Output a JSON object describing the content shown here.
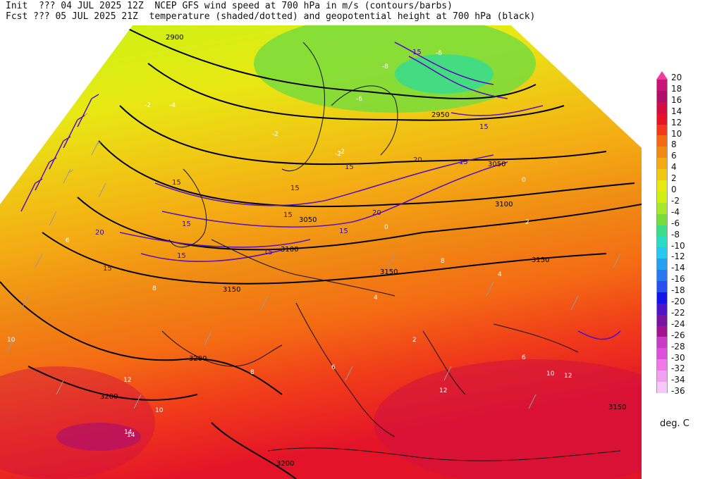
{
  "header": {
    "line1": "Init  ??? 04 JUL 2025 12Z  NCEP GFS wind speed at 700 hPa in m/s (contours/barbs)",
    "line2": "Fcst ??? 05 JUL 2025 21Z  temperature (shaded/dotted) and geopotential height at 700 hPa (black)"
  },
  "legend": {
    "unit": "deg. C",
    "ticks": [
      "20",
      "18",
      "16",
      "14",
      "12",
      "10",
      "8",
      "6",
      "4",
      "2",
      "0",
      "-2",
      "-4",
      "-6",
      "-8",
      "-10",
      "-12",
      "-14",
      "-16",
      "-18",
      "-20",
      "-22",
      "-24",
      "-26",
      "-28",
      "-30",
      "-32",
      "-34",
      "-36"
    ],
    "colors": [
      "#f03ca0",
      "#c81478",
      "#b0106a",
      "#d01040",
      "#e41428",
      "#f03a1a",
      "#f46a14",
      "#f08a14",
      "#f4aa14",
      "#f0c814",
      "#e8e814",
      "#d0f014",
      "#a8e82c",
      "#78dc3c",
      "#3cdc8a",
      "#28dcc8",
      "#28c8f0",
      "#28a0f0",
      "#2878f0",
      "#2850f0",
      "#1414e8",
      "#5014c8",
      "#7814a0",
      "#a01490",
      "#c83cc8",
      "#dc50dc",
      "#f078e8",
      "#f4a0f0",
      "#f8c8f8"
    ]
  },
  "map_labels": {
    "heights": [
      "2900",
      "2950",
      "3050",
      "3100",
      "3150",
      "3200",
      "3050",
      "3100",
      "3150",
      "3200",
      "3150",
      "3200",
      "3150"
    ],
    "winds": [
      "15",
      "15",
      "15",
      "15",
      "15",
      "15",
      "20",
      "20",
      "15",
      "15",
      "15",
      "15",
      "15",
      "20",
      "15"
    ],
    "temps": [
      "-2",
      "-4",
      "-6",
      "-8",
      "-6",
      "-2",
      "-2",
      "0",
      "2",
      "4",
      "6",
      "8",
      "10",
      "12",
      "14",
      "10",
      "12",
      "6",
      "8",
      "4",
      "2",
      "0",
      "-2",
      "6",
      "10",
      "12",
      "14",
      "8"
    ]
  }
}
